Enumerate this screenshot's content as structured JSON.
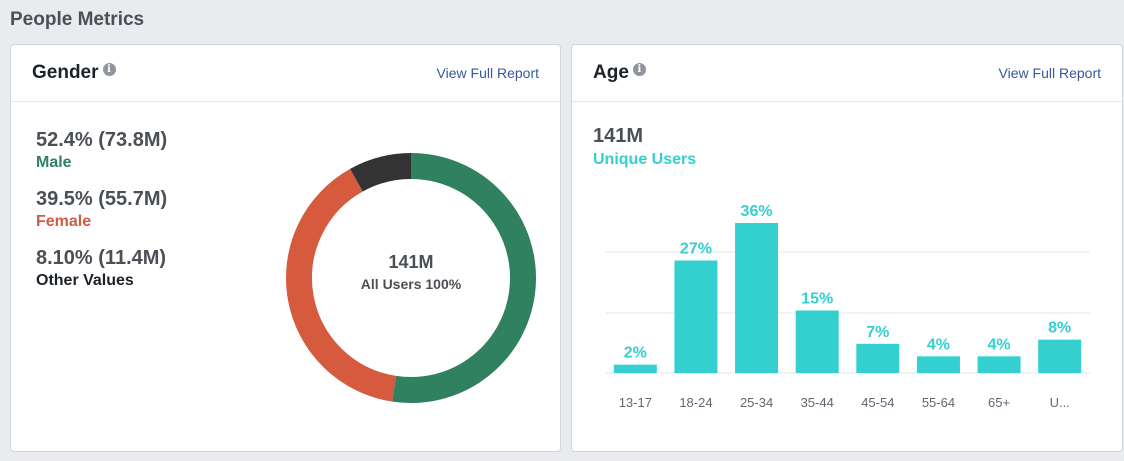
{
  "page": {
    "title": "People Metrics"
  },
  "gender": {
    "title": "Gender",
    "report_link": "View Full Report",
    "metrics": [
      {
        "value": "52.4% (73.8M)",
        "label": "Male",
        "color": "#2f8160"
      },
      {
        "value": "39.5% (55.7M)",
        "label": "Female",
        "color": "#d55a3e"
      },
      {
        "value": "8.10% (11.4M)",
        "label": "Other Values",
        "color": "#1d2129"
      }
    ],
    "center_value": "141M",
    "center_label": "All Users 100%"
  },
  "age": {
    "title": "Age",
    "report_link": "View Full Report",
    "total": "141M",
    "total_label": "Unique Users"
  },
  "chart_data": [
    {
      "type": "pie",
      "title": "Gender",
      "categories": [
        "Male",
        "Female",
        "Other Values"
      ],
      "values": [
        52.4,
        39.5,
        8.1
      ],
      "colors": [
        "#2f8160",
        "#d55a3e",
        "#333333"
      ],
      "start": "top, clockwise"
    },
    {
      "type": "bar",
      "title": "Age",
      "categories": [
        "13-17",
        "18-24",
        "25-34",
        "35-44",
        "45-54",
        "55-64",
        "65+",
        "U..."
      ],
      "values": [
        2,
        27,
        36,
        15,
        7,
        4,
        4,
        8
      ],
      "value_labels": [
        "2%",
        "27%",
        "36%",
        "15%",
        "7%",
        "4%",
        "4%",
        "8%"
      ],
      "ylim": [
        0,
        40
      ],
      "grid": true,
      "color": "#34cfcf"
    }
  ]
}
